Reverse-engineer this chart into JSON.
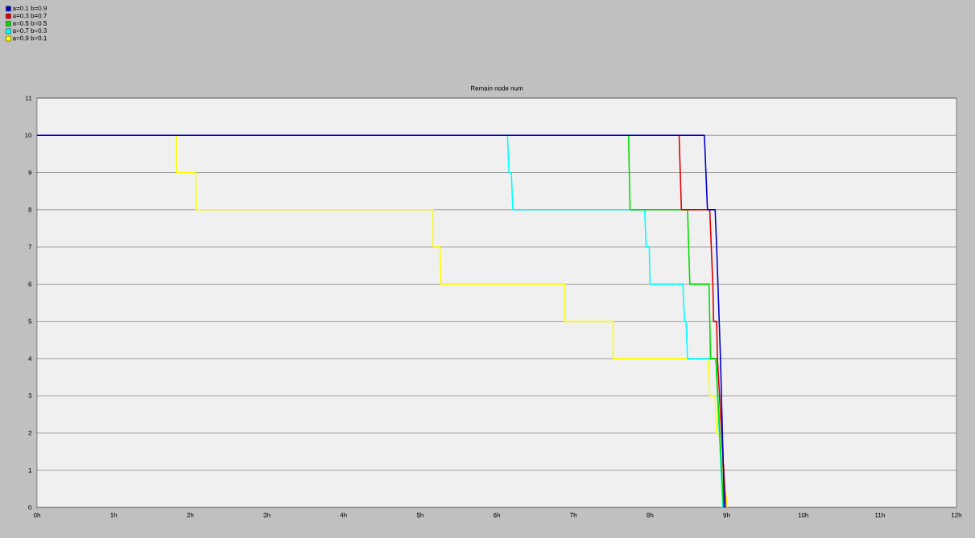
{
  "chart_data": {
    "type": "line",
    "title": "Remain node num",
    "series": [
      {
        "name": "a=0.1 b=0.9",
        "color": "#0000cc",
        "x": [
          0,
          8.71,
          8.73,
          8.75,
          8.85,
          8.87,
          8.92,
          8.97
        ],
        "values": [
          10,
          10,
          9,
          8,
          8,
          7,
          4,
          0
        ]
      },
      {
        "name": "a=0.3 b=0.7",
        "color": "#dd0000",
        "x": [
          8.38,
          8.41,
          8.78,
          8.82,
          8.83,
          8.87,
          8.88,
          8.99
        ],
        "values": [
          10,
          8,
          8,
          6,
          5,
          5,
          4,
          0
        ]
      },
      {
        "name": "a=0.5 b=0.5",
        "color": "#00dd00",
        "x": [
          7.72,
          7.74,
          8.49,
          8.52,
          8.77,
          8.79,
          8.86,
          8.96
        ],
        "values": [
          10,
          8,
          8,
          6,
          6,
          4,
          4,
          0
        ]
      },
      {
        "name": "a=0.7 b=0.3",
        "color": "#00ffff",
        "x": [
          6.14,
          6.16,
          6.19,
          6.21,
          7.93,
          7.95,
          7.99,
          8.0,
          8.43,
          8.45,
          8.47,
          8.49,
          8.86,
          8.95
        ],
        "values": [
          10,
          9,
          9,
          8,
          8,
          7,
          7,
          6,
          6,
          5,
          5,
          4,
          4,
          0
        ]
      },
      {
        "name": "a=0.9 b=0.1",
        "color": "#ffff00",
        "x": [
          1.82,
          1.82,
          2.07,
          2.08,
          5.17,
          5.17,
          5.26,
          5.27,
          6.89,
          6.89,
          7.52,
          7.52,
          8.76,
          8.78,
          8.85,
          8.87,
          8.9,
          9.01
        ],
        "values": [
          10,
          9,
          9,
          8,
          8,
          7,
          7,
          6,
          6,
          5,
          5,
          4,
          4,
          3,
          3,
          2,
          2,
          0
        ]
      }
    ],
    "xlim": [
      0,
      12
    ],
    "ylim": [
      0,
      11
    ],
    "xticks": [
      {
        "value": 0,
        "label": "0h"
      },
      {
        "value": 1,
        "label": "1h"
      },
      {
        "value": 2,
        "label": "2h"
      },
      {
        "value": 3,
        "label": "3h"
      },
      {
        "value": 4,
        "label": "4h"
      },
      {
        "value": 5,
        "label": "5h"
      },
      {
        "value": 6,
        "label": "6h"
      },
      {
        "value": 7,
        "label": "7h"
      },
      {
        "value": 8,
        "label": "8h"
      },
      {
        "value": 9,
        "label": "9h"
      },
      {
        "value": 10,
        "label": "10h"
      },
      {
        "value": 11,
        "label": "11h"
      },
      {
        "value": 12,
        "label": "12h"
      }
    ],
    "yticks": [
      0,
      1,
      2,
      3,
      4,
      5,
      6,
      7,
      8,
      9,
      10,
      11
    ],
    "grid": "y",
    "legend": "top left",
    "marker": "none",
    "line_style": "solid"
  }
}
